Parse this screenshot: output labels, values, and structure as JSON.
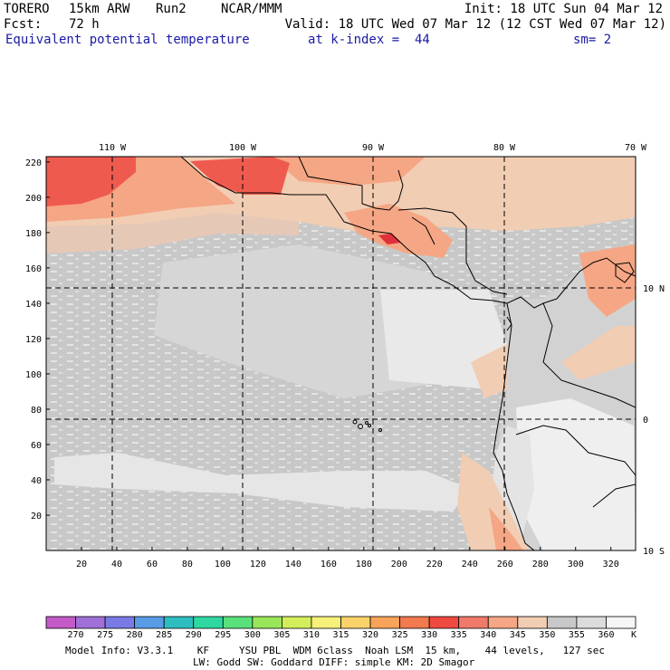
{
  "header": {
    "model": "TORERO",
    "resolution": "15km ARW",
    "run": "Run2",
    "org": "NCAR/MMM",
    "init": "Init: 18 UTC Sun 04 Mar 12",
    "fcst": "Fcst:",
    "fcst_hours": "72 h",
    "valid": "Valid: 18 UTC Wed 07 Mar 12 (12 CST Wed 07 Mar 12)",
    "field": "Equivalent potential temperature",
    "level": "at k-index =  44",
    "smoothing": "sm= 2"
  },
  "map": {
    "lon_labels": [
      "110 W",
      "100 W",
      "90 W",
      "80 W",
      "70 W"
    ],
    "lat_labels": [
      "10 N",
      "0",
      "10 S"
    ],
    "x_ticks": [
      "20",
      "40",
      "60",
      "80",
      "100",
      "120",
      "140",
      "160",
      "180",
      "200",
      "220",
      "240",
      "260",
      "280",
      "300",
      "320"
    ],
    "y_ticks": [
      "220",
      "200",
      "180",
      "160",
      "140",
      "120",
      "100",
      "80",
      "60",
      "40",
      "20"
    ],
    "colors": {
      "ocean": "#c8c8c8",
      "light": "#dcdcdc",
      "white": "#f6f6f6",
      "tan": "#f1cdb3",
      "salmon": "#f5a684",
      "red": "#ef5a4f",
      "land_line": "#000000"
    }
  },
  "colorbar": {
    "labels": [
      "270",
      "275",
      "280",
      "285",
      "290",
      "295",
      "300",
      "305",
      "310",
      "315",
      "320",
      "325",
      "330",
      "335",
      "340",
      "345",
      "350",
      "355",
      "360"
    ],
    "unit": "K",
    "colors": [
      "#c35ac8",
      "#a070d8",
      "#7a7ae6",
      "#5a9be6",
      "#2ebdc0",
      "#2ed8a0",
      "#5ae07a",
      "#9ae65a",
      "#d2ee5a",
      "#f7f07a",
      "#fbd26a",
      "#f7a45a",
      "#f17a4e",
      "#ef4a3f",
      "#ef7a6a",
      "#f5a684",
      "#f1cdb3",
      "#c8c8c8",
      "#dcdcdc",
      "#f6f6f6"
    ]
  },
  "footer": {
    "line1": "Model Info: V3.3.1    KF     YSU PBL  WDM 6class  Noah LSM  15 km,    44 levels,   127 sec",
    "line2": "LW: Godd SW: Goddard DIFF: simple KM: 2D Smagor"
  }
}
